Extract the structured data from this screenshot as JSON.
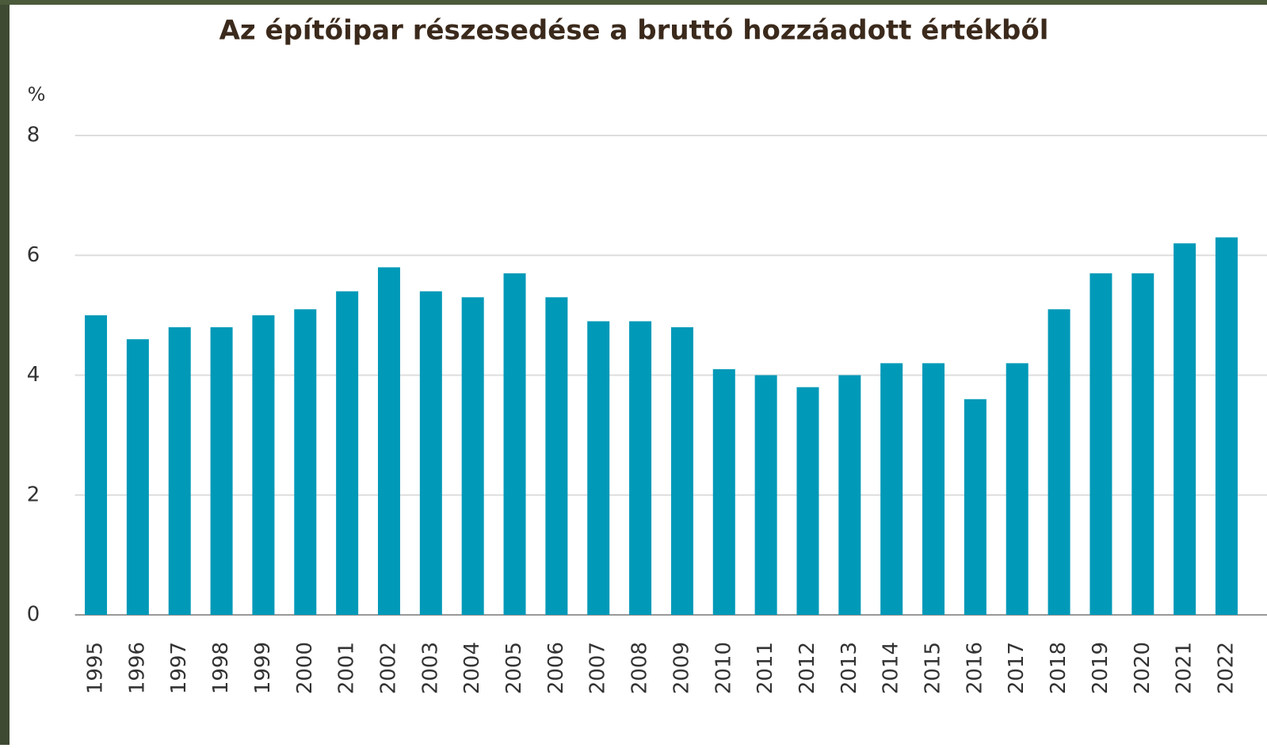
{
  "chart_data": {
    "type": "bar",
    "title": "Az építőipar részesedése a bruttó hozzáadott értékből",
    "y_label": "%",
    "categories": [
      "1995",
      "1996",
      "1997",
      "1998",
      "1999",
      "2000",
      "2001",
      "2002",
      "2003",
      "2004",
      "2005",
      "2006",
      "2007",
      "2008",
      "2009",
      "2010",
      "2011",
      "2012",
      "2013",
      "2014",
      "2015",
      "2016",
      "2017",
      "2018",
      "2019",
      "2020",
      "2021",
      "2022"
    ],
    "values": [
      5.0,
      4.6,
      4.8,
      4.8,
      5.0,
      5.1,
      5.4,
      5.8,
      5.4,
      5.3,
      5.7,
      5.3,
      4.9,
      4.9,
      4.8,
      4.1,
      4.0,
      3.8,
      4.0,
      4.2,
      4.2,
      3.6,
      4.2,
      5.1,
      5.7,
      5.7,
      6.2,
      6.3
    ],
    "color": "#0099b8",
    "ylim": [
      0,
      8
    ],
    "yticks": [
      0,
      2,
      4,
      6,
      8
    ],
    "grid": true
  }
}
